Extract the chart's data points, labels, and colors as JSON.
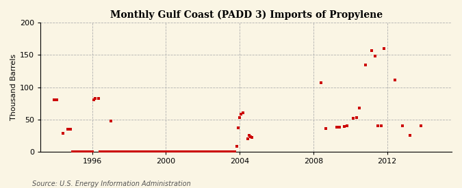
{
  "title": "Monthly Gulf Coast (PADD 3) Imports of Propylene",
  "ylabel": "Thousand Barrels",
  "source": "Source: U.S. Energy Information Administration",
  "background_color": "#faf5e4",
  "plot_bg_color": "#faf5e4",
  "marker_color": "#cc0000",
  "ylim": [
    0,
    200
  ],
  "yticks": [
    0,
    50,
    100,
    150,
    200
  ],
  "xlim_start": 1993.2,
  "xlim_end": 2015.5,
  "xticks": [
    1996,
    2000,
    2004,
    2008,
    2012
  ],
  "data_points": [
    [
      1993.92,
      80
    ],
    [
      1994.08,
      80
    ],
    [
      1994.42,
      28
    ],
    [
      1994.67,
      35
    ],
    [
      1994.83,
      35
    ],
    [
      1994.92,
      0
    ],
    [
      1995.0,
      0
    ],
    [
      1995.08,
      0
    ],
    [
      1995.17,
      0
    ],
    [
      1995.25,
      0
    ],
    [
      1995.33,
      0
    ],
    [
      1995.42,
      0
    ],
    [
      1995.5,
      0
    ],
    [
      1995.58,
      0
    ],
    [
      1995.67,
      0
    ],
    [
      1995.75,
      0
    ],
    [
      1995.83,
      0
    ],
    [
      1995.92,
      0
    ],
    [
      1996.0,
      0
    ],
    [
      1996.08,
      80
    ],
    [
      1996.17,
      83
    ],
    [
      1996.33,
      83
    ],
    [
      1996.42,
      0
    ],
    [
      1996.5,
      0
    ],
    [
      1996.58,
      0
    ],
    [
      1996.67,
      0
    ],
    [
      1996.75,
      0
    ],
    [
      1996.83,
      0
    ],
    [
      1996.92,
      0
    ],
    [
      1997.0,
      48
    ],
    [
      1997.08,
      0
    ],
    [
      1997.17,
      0
    ],
    [
      1997.25,
      0
    ],
    [
      1997.33,
      0
    ],
    [
      1997.42,
      0
    ],
    [
      1997.5,
      0
    ],
    [
      1997.58,
      0
    ],
    [
      1997.67,
      0
    ],
    [
      1997.75,
      0
    ],
    [
      1997.83,
      0
    ],
    [
      1997.92,
      0
    ],
    [
      1998.0,
      0
    ],
    [
      1998.08,
      0
    ],
    [
      1998.17,
      0
    ],
    [
      1998.25,
      0
    ],
    [
      1998.33,
      0
    ],
    [
      1998.42,
      0
    ],
    [
      1998.5,
      0
    ],
    [
      1998.58,
      0
    ],
    [
      1998.67,
      0
    ],
    [
      1998.75,
      0
    ],
    [
      1998.83,
      0
    ],
    [
      1998.92,
      0
    ],
    [
      1999.0,
      0
    ],
    [
      1999.08,
      0
    ],
    [
      1999.17,
      0
    ],
    [
      1999.25,
      0
    ],
    [
      1999.33,
      0
    ],
    [
      1999.42,
      0
    ],
    [
      1999.5,
      0
    ],
    [
      1999.58,
      0
    ],
    [
      1999.67,
      0
    ],
    [
      1999.75,
      0
    ],
    [
      1999.83,
      0
    ],
    [
      1999.92,
      0
    ],
    [
      2000.0,
      0
    ],
    [
      2000.08,
      0
    ],
    [
      2000.17,
      0
    ],
    [
      2000.25,
      0
    ],
    [
      2000.33,
      0
    ],
    [
      2000.42,
      0
    ],
    [
      2000.5,
      0
    ],
    [
      2000.58,
      0
    ],
    [
      2000.67,
      0
    ],
    [
      2000.75,
      0
    ],
    [
      2000.83,
      0
    ],
    [
      2000.92,
      0
    ],
    [
      2001.0,
      0
    ],
    [
      2001.08,
      0
    ],
    [
      2001.17,
      0
    ],
    [
      2001.25,
      0
    ],
    [
      2001.33,
      0
    ],
    [
      2001.42,
      0
    ],
    [
      2001.5,
      0
    ],
    [
      2001.58,
      0
    ],
    [
      2001.67,
      0
    ],
    [
      2001.75,
      0
    ],
    [
      2001.83,
      0
    ],
    [
      2001.92,
      0
    ],
    [
      2002.0,
      0
    ],
    [
      2002.08,
      0
    ],
    [
      2002.17,
      0
    ],
    [
      2002.25,
      0
    ],
    [
      2002.33,
      0
    ],
    [
      2002.42,
      0
    ],
    [
      2002.5,
      0
    ],
    [
      2002.58,
      0
    ],
    [
      2002.67,
      0
    ],
    [
      2002.75,
      0
    ],
    [
      2002.83,
      0
    ],
    [
      2002.92,
      0
    ],
    [
      2003.0,
      0
    ],
    [
      2003.08,
      0
    ],
    [
      2003.17,
      0
    ],
    [
      2003.25,
      0
    ],
    [
      2003.33,
      0
    ],
    [
      2003.42,
      0
    ],
    [
      2003.5,
      0
    ],
    [
      2003.58,
      0
    ],
    [
      2003.67,
      0
    ],
    [
      2003.75,
      0
    ],
    [
      2003.83,
      8
    ],
    [
      2003.92,
      37
    ],
    [
      2004.0,
      53
    ],
    [
      2004.08,
      58
    ],
    [
      2004.17,
      60
    ],
    [
      2004.42,
      20
    ],
    [
      2004.5,
      25
    ],
    [
      2004.58,
      23
    ],
    [
      2004.67,
      22
    ],
    [
      2008.42,
      107
    ],
    [
      2008.67,
      36
    ],
    [
      2009.25,
      38
    ],
    [
      2009.42,
      38
    ],
    [
      2009.67,
      39
    ],
    [
      2009.83,
      40
    ],
    [
      2010.17,
      52
    ],
    [
      2010.33,
      53
    ],
    [
      2010.5,
      68
    ],
    [
      2010.83,
      135
    ],
    [
      2011.17,
      157
    ],
    [
      2011.33,
      148
    ],
    [
      2011.5,
      40
    ],
    [
      2011.67,
      40
    ],
    [
      2011.83,
      160
    ],
    [
      2012.42,
      111
    ],
    [
      2012.83,
      40
    ],
    [
      2013.25,
      25
    ],
    [
      2013.83,
      40
    ]
  ]
}
